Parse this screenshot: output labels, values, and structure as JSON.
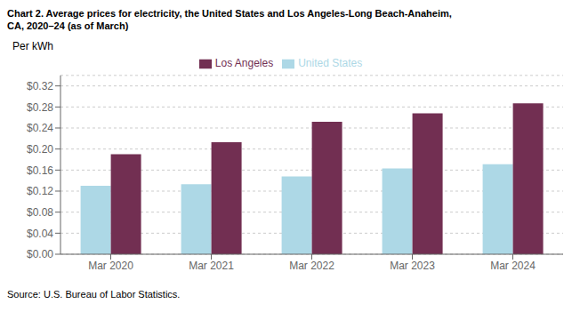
{
  "chart_data": {
    "type": "bar",
    "title": "Chart 2. Average prices for electricity, the United States and Los Angeles-Long Beach-Anaheim,",
    "subtitle": "CA, 2020–24 (as of March)",
    "y_label": "Per kWh",
    "source": "Source: U.S. Bureau of Labor Statistics.",
    "categories": [
      "Mar 2020",
      "Mar 2021",
      "Mar 2022",
      "Mar 2023",
      "Mar 2024"
    ],
    "series": [
      {
        "name": "United States",
        "color": "#ADD8E6",
        "values": [
          0.13,
          0.133,
          0.148,
          0.163,
          0.171
        ]
      },
      {
        "name": "Los Angeles",
        "color": "#722F52",
        "values": [
          0.19,
          0.213,
          0.252,
          0.268,
          0.287
        ]
      }
    ],
    "ylim": [
      0,
      0.34
    ],
    "yticks": [
      {
        "value": 0.0,
        "label": "$0.00"
      },
      {
        "value": 0.04,
        "label": "$0.04"
      },
      {
        "value": 0.08,
        "label": "$0.08"
      },
      {
        "value": 0.12,
        "label": "$0.12"
      },
      {
        "value": 0.16,
        "label": "$0.16"
      },
      {
        "value": 0.2,
        "label": "$0.20"
      },
      {
        "value": 0.24,
        "label": "$0.24"
      },
      {
        "value": 0.28,
        "label": "$0.28"
      },
      {
        "value": 0.32,
        "label": "$0.32"
      }
    ],
    "grid": true,
    "legend": "top"
  }
}
